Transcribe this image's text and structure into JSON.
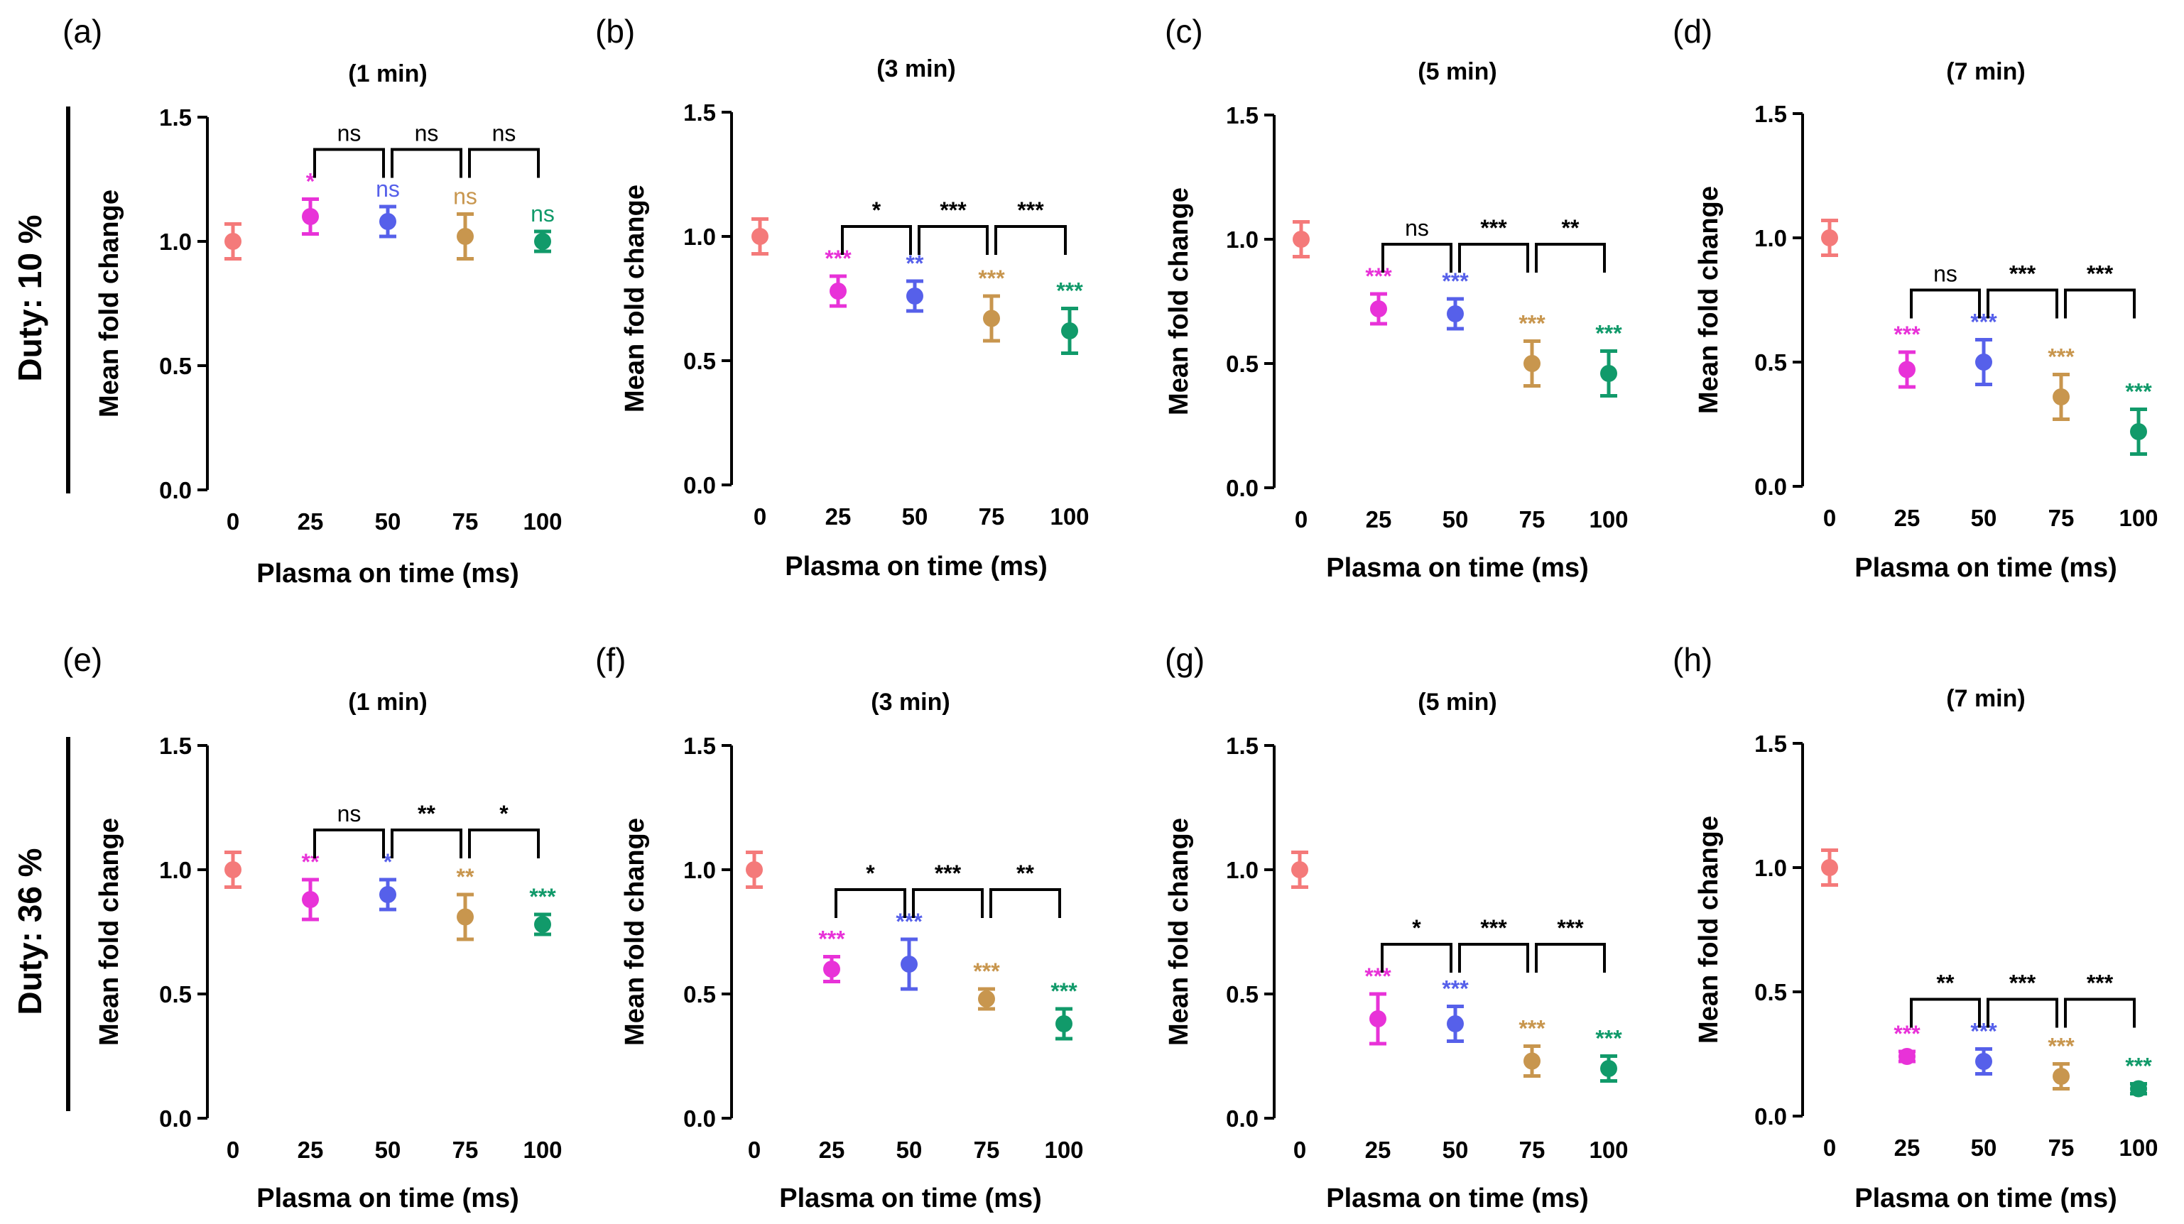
{
  "figure": {
    "row_labels": [
      "Duty: 10 %",
      "Duty: 36 %"
    ],
    "colors": {
      "0": "#f47a7a",
      "25": "#e832d8",
      "50": "#5660ea",
      "75": "#c8964e",
      "100": "#119a6a",
      "bracket": "#000000"
    }
  },
  "chart_data": [
    {
      "type": "scatter",
      "panel": "(a)",
      "title": "(1 min)",
      "xlabel": "Plasma on time (ms)",
      "ylabel": "Mean fold change",
      "ylim": [
        0,
        1.5
      ],
      "yticks": [
        "0.0",
        "0.5",
        "1.0",
        "1.5"
      ],
      "categories": [
        "0",
        "25",
        "50",
        "75",
        "100"
      ],
      "values": [
        1.0,
        1.1,
        1.08,
        1.02,
        1.0
      ],
      "errors": [
        0.07,
        0.07,
        0.06,
        0.09,
        0.04
      ],
      "point_sig": [
        "",
        "*",
        "ns",
        "ns",
        "ns"
      ],
      "brackets": [
        {
          "from": "25",
          "to": "50",
          "label": "ns"
        },
        {
          "from": "50",
          "to": "75",
          "label": "ns"
        },
        {
          "from": "75",
          "to": "100",
          "label": "ns"
        }
      ]
    },
    {
      "type": "scatter",
      "panel": "(b)",
      "title": "(3 min)",
      "xlabel": "Plasma on time (ms)",
      "ylabel": "Mean fold change",
      "ylim": [
        0,
        1.5
      ],
      "yticks": [
        "0.0",
        "0.5",
        "1.0",
        "1.5"
      ],
      "categories": [
        "0",
        "25",
        "50",
        "75",
        "100"
      ],
      "values": [
        1.0,
        0.78,
        0.76,
        0.67,
        0.62
      ],
      "errors": [
        0.07,
        0.06,
        0.06,
        0.09,
        0.09
      ],
      "point_sig": [
        "",
        "***",
        "**",
        "***",
        "***"
      ],
      "brackets": [
        {
          "from": "25",
          "to": "50",
          "label": "*"
        },
        {
          "from": "50",
          "to": "75",
          "label": "***"
        },
        {
          "from": "75",
          "to": "100",
          "label": "***"
        }
      ]
    },
    {
      "type": "scatter",
      "panel": "(c)",
      "title": "(5 min)",
      "xlabel": "Plasma on time (ms)",
      "ylabel": "Mean fold change",
      "ylim": [
        0,
        1.5
      ],
      "yticks": [
        "0.0",
        "0.5",
        "1.0",
        "1.5"
      ],
      "categories": [
        "0",
        "25",
        "50",
        "75",
        "100"
      ],
      "values": [
        1.0,
        0.72,
        0.7,
        0.5,
        0.46
      ],
      "errors": [
        0.07,
        0.06,
        0.06,
        0.09,
        0.09
      ],
      "point_sig": [
        "",
        "***",
        "***",
        "***",
        "***"
      ],
      "brackets": [
        {
          "from": "25",
          "to": "50",
          "label": "ns"
        },
        {
          "from": "50",
          "to": "75",
          "label": "***"
        },
        {
          "from": "75",
          "to": "100",
          "label": "**"
        }
      ]
    },
    {
      "type": "scatter",
      "panel": "(d)",
      "title": "(7 min)",
      "xlabel": "Plasma on time (ms)",
      "ylabel": "Mean fold change",
      "ylim": [
        0,
        1.5
      ],
      "yticks": [
        "0.0",
        "0.5",
        "1.0",
        "1.5"
      ],
      "categories": [
        "0",
        "25",
        "50",
        "75",
        "100"
      ],
      "values": [
        1.0,
        0.47,
        0.5,
        0.36,
        0.22
      ],
      "errors": [
        0.07,
        0.07,
        0.09,
        0.09,
        0.09
      ],
      "point_sig": [
        "",
        "***",
        "***",
        "***",
        "***"
      ],
      "brackets": [
        {
          "from": "25",
          "to": "50",
          "label": "ns"
        },
        {
          "from": "50",
          "to": "75",
          "label": "***"
        },
        {
          "from": "75",
          "to": "100",
          "label": "***"
        }
      ]
    },
    {
      "type": "scatter",
      "panel": "(e)",
      "title": "(1 min)",
      "xlabel": "Plasma on time (ms)",
      "ylabel": "Mean fold change",
      "ylim": [
        0,
        1.5
      ],
      "yticks": [
        "0.0",
        "0.5",
        "1.0",
        "1.5"
      ],
      "categories": [
        "0",
        "25",
        "50",
        "75",
        "100"
      ],
      "values": [
        1.0,
        0.88,
        0.9,
        0.81,
        0.78
      ],
      "errors": [
        0.07,
        0.08,
        0.06,
        0.09,
        0.04
      ],
      "point_sig": [
        "",
        "**",
        "*",
        "**",
        "***"
      ],
      "brackets": [
        {
          "from": "25",
          "to": "50",
          "label": "ns"
        },
        {
          "from": "50",
          "to": "75",
          "label": "**"
        },
        {
          "from": "75",
          "to": "100",
          "label": "*"
        }
      ]
    },
    {
      "type": "scatter",
      "panel": "(f)",
      "title": "(3 min)",
      "xlabel": "Plasma on time (ms)",
      "ylabel": "Mean fold change",
      "ylim": [
        0,
        1.5
      ],
      "yticks": [
        "0.0",
        "0.5",
        "1.0",
        "1.5"
      ],
      "categories": [
        "0",
        "25",
        "50",
        "75",
        "100"
      ],
      "values": [
        1.0,
        0.6,
        0.62,
        0.48,
        0.38
      ],
      "errors": [
        0.07,
        0.05,
        0.1,
        0.04,
        0.06
      ],
      "point_sig": [
        "",
        "***",
        "***",
        "***",
        "***"
      ],
      "brackets": [
        {
          "from": "25",
          "to": "50",
          "label": "*"
        },
        {
          "from": "50",
          "to": "75",
          "label": "***"
        },
        {
          "from": "75",
          "to": "100",
          "label": "**"
        }
      ]
    },
    {
      "type": "scatter",
      "panel": "(g)",
      "title": "(5 min)",
      "xlabel": "Plasma on time (ms)",
      "ylabel": "Mean fold change",
      "ylim": [
        0,
        1.5
      ],
      "yticks": [
        "0.0",
        "0.5",
        "1.0",
        "1.5"
      ],
      "categories": [
        "0",
        "25",
        "50",
        "75",
        "100"
      ],
      "values": [
        1.0,
        0.4,
        0.38,
        0.23,
        0.2
      ],
      "errors": [
        0.07,
        0.1,
        0.07,
        0.06,
        0.05
      ],
      "point_sig": [
        "",
        "***",
        "***",
        "***",
        "***"
      ],
      "brackets": [
        {
          "from": "25",
          "to": "50",
          "label": "*"
        },
        {
          "from": "50",
          "to": "75",
          "label": "***"
        },
        {
          "from": "75",
          "to": "100",
          "label": "***"
        }
      ]
    },
    {
      "type": "scatter",
      "panel": "(h)",
      "title": "(7 min)",
      "xlabel": "Plasma on time (ms)",
      "ylabel": "Mean fold change",
      "ylim": [
        0,
        1.5
      ],
      "yticks": [
        "0.0",
        "0.5",
        "1.0",
        "1.5"
      ],
      "categories": [
        "0",
        "25",
        "50",
        "75",
        "100"
      ],
      "values": [
        1.0,
        0.24,
        0.22,
        0.16,
        0.11
      ],
      "errors": [
        0.07,
        0.02,
        0.05,
        0.05,
        0.02
      ],
      "point_sig": [
        "",
        "***",
        "***",
        "***",
        "***"
      ],
      "brackets": [
        {
          "from": "25",
          "to": "50",
          "label": "**"
        },
        {
          "from": "50",
          "to": "75",
          "label": "***"
        },
        {
          "from": "75",
          "to": "100",
          "label": "***"
        }
      ]
    }
  ]
}
